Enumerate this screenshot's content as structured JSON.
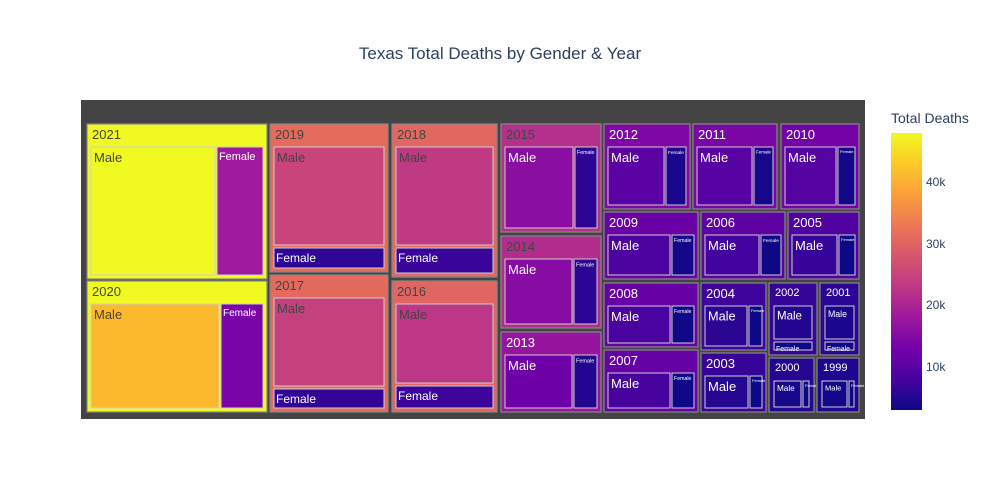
{
  "chart_data": {
    "type": "treemap",
    "title": "Texas Total Deaths by Gender & Year",
    "colorbar": {
      "title": "Total Deaths",
      "range": [
        3000,
        48000
      ],
      "ticks": [
        {
          "label": "10k",
          "value": 10000
        },
        {
          "label": "20k",
          "value": 20000
        },
        {
          "label": "30k",
          "value": 30000
        },
        {
          "label": "40k",
          "value": 40000
        }
      ],
      "colorscale": [
        "#0d0887",
        "#46039f",
        "#7201a8",
        "#9c179e",
        "#bd3786",
        "#d8576b",
        "#ed7953",
        "#fb9f3a",
        "#fdca26",
        "#f0f921"
      ]
    },
    "root_color": "#444444",
    "years": [
      {
        "year": "2021",
        "male": 48000,
        "female": 18500
      },
      {
        "year": "2020",
        "male": 41000,
        "female": 14000
      },
      {
        "year": "2019",
        "male": 25000,
        "female": 6000
      },
      {
        "year": "2018",
        "male": 23500,
        "female": 6800
      },
      {
        "year": "2017",
        "male": 24500,
        "female": 6300
      },
      {
        "year": "2016",
        "male": 23000,
        "female": 7100
      },
      {
        "year": "2015",
        "male": 16000,
        "female": 5800
      },
      {
        "year": "2014",
        "male": 15500,
        "female": 5800
      },
      {
        "year": "2013",
        "male": 12600,
        "female": 4800
      },
      {
        "year": "2012",
        "male": 10500,
        "female": 4100
      },
      {
        "year": "2011",
        "male": 10200,
        "female": 3900
      },
      {
        "year": "2010",
        "male": 9600,
        "female": 3700
      },
      {
        "year": "2009",
        "male": 8700,
        "female": 3400
      },
      {
        "year": "2006",
        "male": 7700,
        "female": 3100
      },
      {
        "year": "2005",
        "male": 6600,
        "female": 2600
      },
      {
        "year": "2008",
        "male": 8500,
        "female": 3300
      },
      {
        "year": "2007",
        "male": 8200,
        "female": 3200
      },
      {
        "year": "2004",
        "male": 5500,
        "female": 1900
      },
      {
        "year": "2002",
        "male": 4800,
        "female": 1600
      },
      {
        "year": "2001",
        "male": 4200,
        "female": 1400
      },
      {
        "year": "2003",
        "male": 5000,
        "female": 1700
      },
      {
        "year": "2000",
        "male": 3900,
        "female": 1100
      },
      {
        "year": "1999",
        "male": 3500,
        "female": 1000
      }
    ],
    "labels": {
      "male": "Male",
      "female": "Female"
    }
  }
}
